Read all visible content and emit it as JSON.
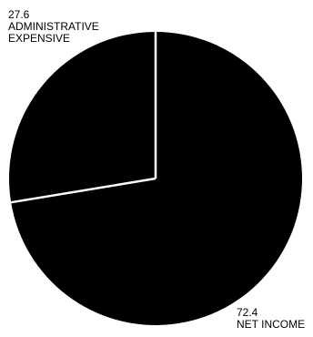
{
  "chart_data": {
    "type": "pie",
    "slices": [
      {
        "value": 72.4,
        "value_label": "72.4",
        "label": "NET INCOME"
      },
      {
        "value": 27.6,
        "value_label": "27.6",
        "label": "ADMINISTRATIVE EXPENSIVE"
      }
    ],
    "labels": [
      {
        "value": "27.6",
        "lines": [
          "ADMINISTRATIVE",
          "EXPENSIVE"
        ]
      },
      {
        "value": "72.4",
        "lines": [
          "NET INCOME"
        ]
      }
    ],
    "colors": {
      "slice_fill": "#000000",
      "separator": "#ffffff",
      "background": "#ffffff"
    }
  }
}
